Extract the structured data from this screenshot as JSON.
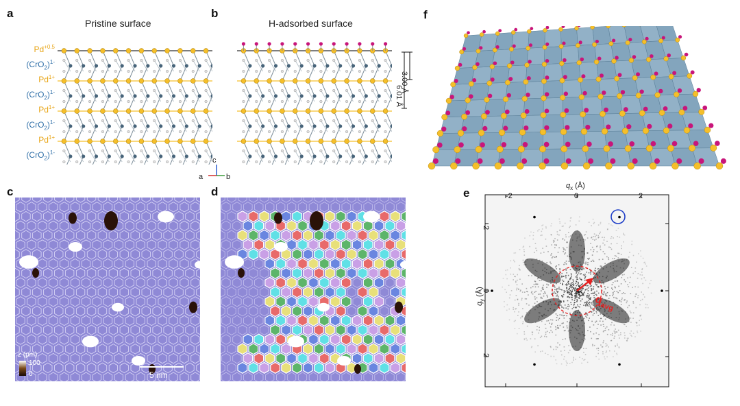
{
  "labels": {
    "a": "a",
    "b": "b",
    "c": "c",
    "d": "d",
    "e": "e",
    "f": "f"
  },
  "titles": {
    "pristine": "Pristine surface",
    "h_adsorbed": "H-adsorbed surface"
  },
  "layers": [
    {
      "name": "Pd",
      "charge": "+0.5",
      "kind": "pd"
    },
    {
      "name": "(CrO",
      "sub": "2",
      "close": ")",
      "charge": "1-",
      "kind": "cro"
    },
    {
      "name": "Pd",
      "charge": "1+",
      "kind": "pd"
    },
    {
      "name": "(CrO",
      "sub": "2",
      "close": ")",
      "charge": "1-",
      "kind": "cro"
    },
    {
      "name": "Pd",
      "charge": "1+",
      "kind": "pd"
    },
    {
      "name": "(CrO",
      "sub": "2",
      "close": ")",
      "charge": "1-",
      "kind": "cro"
    },
    {
      "name": "Pd",
      "charge": "1+",
      "kind": "pd"
    },
    {
      "name": "(CrO",
      "sub": "2",
      "close": ")",
      "charge": "1-",
      "kind": "cro"
    }
  ],
  "scale_bars": {
    "short": "3.00 Å",
    "long": "6.01 Å"
  },
  "axes": {
    "a": "a",
    "b": "b",
    "c": "c"
  },
  "stm": {
    "colorbar_title": "z (pm)",
    "colorbar_min": "0",
    "colorbar_max": "100",
    "scale_bar": "5 nm"
  },
  "fft": {
    "x_axis_label": "q",
    "x_axis_sub": "x",
    "x_axis_unit": " (Å)",
    "y_axis_label": "q",
    "y_axis_sub": "y",
    "y_axis_unit": " (Å)",
    "x_ticks": [
      "-2",
      "0",
      "2"
    ],
    "y_ticks": [
      "2",
      "0",
      "2"
    ],
    "annotation": "q",
    "annotation_sub": "avg"
  },
  "colors": {
    "pd": "#f5bf2a",
    "cro": "#47647a",
    "h": "#c8157a",
    "stm_bg": "#8f89d6",
    "highlight": "#e52222",
    "circle": "#1f3fc8"
  }
}
